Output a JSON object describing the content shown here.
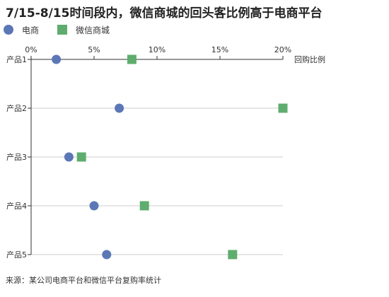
{
  "title": "7/15-8/15时间段内，微信商城的回头客比例高于电商平台",
  "source": "来源：某公司电商平台和微信平台复购率统计",
  "chart_data": {
    "type": "scatter",
    "title": "7/15-8/15时间段内，微信商城的回头客比例高于电商平台",
    "xlabel": "回购比例",
    "ylabel": "",
    "xlim": [
      0,
      20
    ],
    "x_tick_values": [
      0,
      5,
      10,
      15,
      20
    ],
    "x_tick_labels": [
      "0%",
      "5%",
      "10%",
      "15%",
      "20%"
    ],
    "x_axis_position": "top",
    "categories": [
      "产品1",
      "产品2",
      "产品3",
      "产品4",
      "产品5"
    ],
    "grid": "horizontal",
    "legend_placement": "top-left",
    "series": [
      {
        "name": "电商",
        "marker": "circle",
        "color": "#5b77b5",
        "values": [
          2,
          7,
          3,
          5,
          6
        ]
      },
      {
        "name": "微信商城",
        "marker": "square",
        "color": "#5fad6e",
        "values": [
          8,
          20,
          4,
          9,
          16
        ]
      }
    ]
  }
}
